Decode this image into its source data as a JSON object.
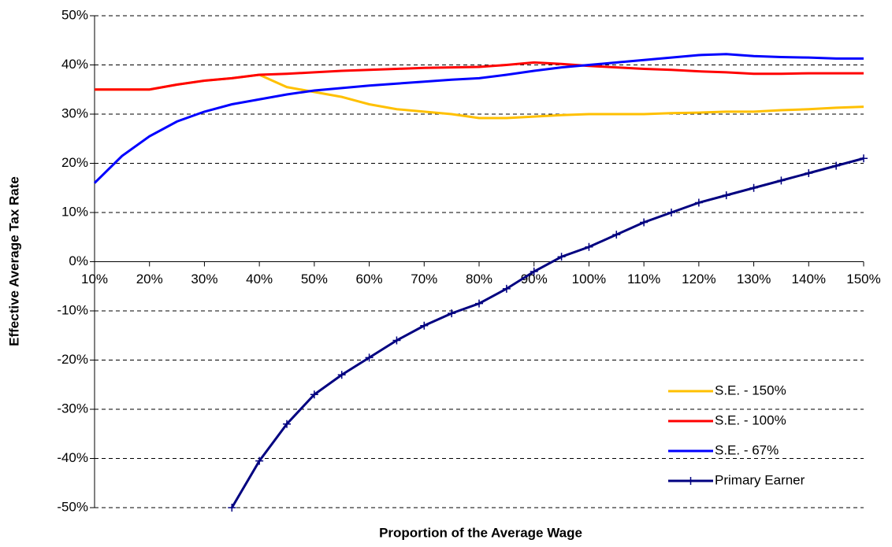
{
  "chart_data": {
    "type": "line",
    "xlabel": "Proportion of the Average Wage",
    "ylabel": "Effective Average Tax Rate",
    "x": [
      10,
      15,
      20,
      25,
      30,
      35,
      40,
      45,
      50,
      55,
      60,
      65,
      70,
      75,
      80,
      85,
      90,
      95,
      100,
      105,
      110,
      115,
      120,
      125,
      130,
      135,
      140,
      145,
      150
    ],
    "series": [
      {
        "name": "S.E. - 150%",
        "color": "#ffc000",
        "values": [
          35,
          35,
          35,
          36,
          36.8,
          37.3,
          38,
          35.5,
          34.5,
          33.5,
          32,
          31,
          30.5,
          30,
          29.2,
          29.2,
          29.5,
          29.8,
          30,
          30,
          30,
          30.2,
          30.3,
          30.5,
          30.5,
          30.8,
          31,
          31.3,
          31.5
        ]
      },
      {
        "name": "S.E. - 100%",
        "color": "#ff0000",
        "values": [
          35,
          35,
          35,
          36,
          36.8,
          37.3,
          38,
          38.2,
          38.5,
          38.8,
          39,
          39.2,
          39.4,
          39.5,
          39.6,
          40,
          40.5,
          40.2,
          39.8,
          39.5,
          39.2,
          39,
          38.7,
          38.5,
          38.2,
          38.2,
          38.3,
          38.3,
          38.3
        ]
      },
      {
        "name": "S.E. - 67%",
        "color": "#0000ff",
        "values": [
          16,
          21.5,
          25.5,
          28.5,
          30.5,
          32,
          33,
          34,
          34.8,
          35.3,
          35.8,
          36.2,
          36.6,
          37,
          37.3,
          38,
          38.8,
          39.5,
          40,
          40.5,
          41,
          41.5,
          42,
          42.2,
          41.8,
          41.6,
          41.5,
          41.3,
          41.3
        ]
      },
      {
        "name": "Primary Earner",
        "color": "#000080",
        "marker": "+",
        "values": [
          null,
          null,
          null,
          null,
          null,
          -50,
          -40.5,
          -33,
          -27,
          -23,
          -19.5,
          -16,
          -13,
          -10.5,
          -8.5,
          -5.5,
          -2,
          1,
          3,
          5.5,
          8,
          10,
          12,
          13.5,
          15,
          16.5,
          18,
          19.5,
          21
        ]
      }
    ],
    "xlim": [
      10,
      150
    ],
    "xticks": [
      {
        "value": 10,
        "label": "10%"
      },
      {
        "value": 20,
        "label": "20%"
      },
      {
        "value": 30,
        "label": "30%"
      },
      {
        "value": 40,
        "label": "40%"
      },
      {
        "value": 50,
        "label": "50%"
      },
      {
        "value": 60,
        "label": "60%"
      },
      {
        "value": 70,
        "label": "70%"
      },
      {
        "value": 80,
        "label": "80%"
      },
      {
        "value": 90,
        "label": "90%"
      },
      {
        "value": 100,
        "label": "100%"
      },
      {
        "value": 110,
        "label": "110%"
      },
      {
        "value": 120,
        "label": "120%"
      },
      {
        "value": 130,
        "label": "130%"
      },
      {
        "value": 140,
        "label": "140%"
      },
      {
        "value": 150,
        "label": "150%"
      }
    ],
    "ylim": [
      -50,
      50
    ],
    "yticks": [
      {
        "value": -50,
        "label": "-50%"
      },
      {
        "value": -40,
        "label": "-40%"
      },
      {
        "value": -30,
        "label": "-30%"
      },
      {
        "value": -20,
        "label": "-20%"
      },
      {
        "value": -10,
        "label": "-10%"
      },
      {
        "value": 0,
        "label": "0%"
      },
      {
        "value": 10,
        "label": "10%"
      },
      {
        "value": 20,
        "label": "20%"
      },
      {
        "value": 30,
        "label": "30%"
      },
      {
        "value": 40,
        "label": "40%"
      },
      {
        "value": 50,
        "label": "50%"
      }
    ],
    "grid": true,
    "legend": "lower right"
  }
}
